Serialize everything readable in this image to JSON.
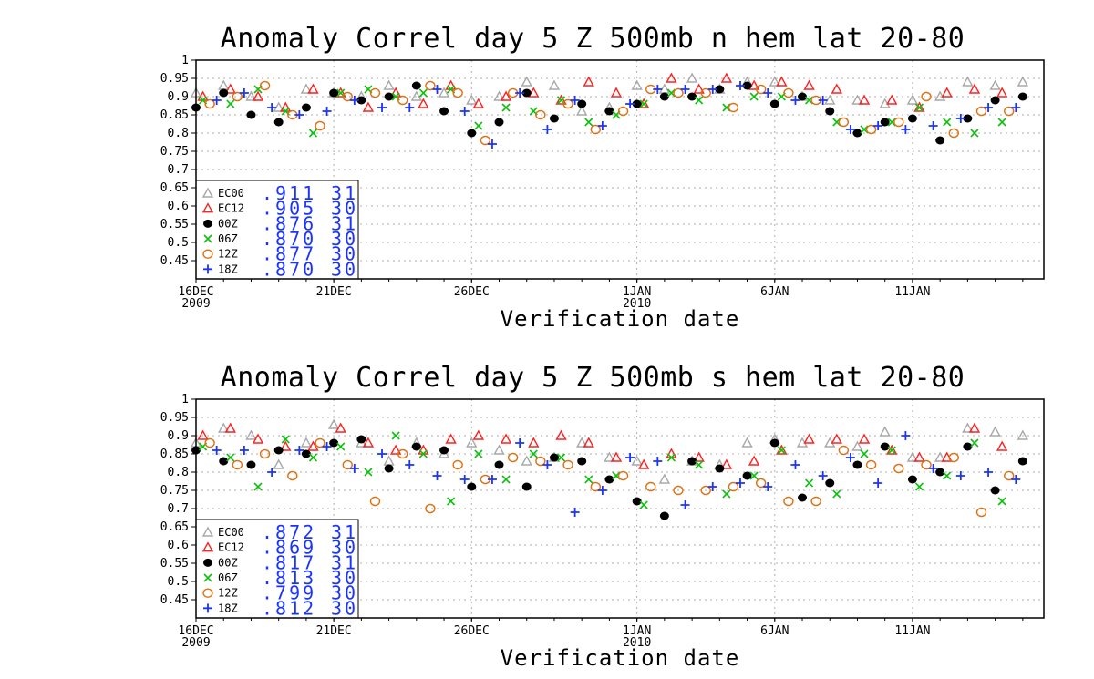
{
  "chart_data": [
    {
      "type": "scatter",
      "title": "Anomaly Correl  day 5  Z 500mb  n hem  lat 20-80",
      "xlabel": "Verification date",
      "ylim": [
        0.4,
        1.0
      ],
      "yticks": [
        "1",
        "0.95",
        "0.9",
        "0.85",
        "0.8",
        "0.75",
        "0.7",
        "0.65",
        "0.6",
        "0.55",
        "0.5",
        "0.45"
      ],
      "xticks": [
        {
          "day": 0,
          "label": "16DEC",
          "label2": "2009"
        },
        {
          "day": 5,
          "label": "21DEC",
          "label2": ""
        },
        {
          "day": 10,
          "label": "26DEC",
          "label2": ""
        },
        {
          "day": 16,
          "label": "1JAN",
          "label2": "2010"
        },
        {
          "day": 21,
          "label": "6JAN",
          "label2": ""
        },
        {
          "day": 26,
          "label": "11JAN",
          "label2": ""
        }
      ],
      "grid": true,
      "legend_position": "bottom-left",
      "series": [
        {
          "name": "EC00",
          "marker": "triangle",
          "color": "#a8a8a8",
          "score": ".911",
          "count": "31",
          "x": [
            0,
            1,
            2,
            3,
            4,
            5,
            6,
            7,
            8,
            9,
            10,
            11,
            12,
            13,
            14,
            15,
            16,
            17,
            18,
            19,
            20,
            21,
            22,
            23,
            24,
            25,
            26,
            27,
            28,
            29,
            30
          ],
          "y": [
            0.91,
            0.93,
            0.9,
            0.87,
            0.92,
            0.91,
            0.9,
            0.93,
            0.9,
            0.91,
            0.89,
            0.9,
            0.94,
            0.93,
            0.86,
            0.87,
            0.93,
            0.92,
            0.95,
            0.92,
            0.94,
            0.94,
            0.9,
            0.89,
            0.89,
            0.88,
            0.89,
            0.9,
            0.94,
            0.93,
            0.94
          ]
        },
        {
          "name": "EC12",
          "marker": "triangle",
          "color": "#ff2020",
          "score": ".905",
          "count": "30",
          "x": [
            0.25,
            1.25,
            2.25,
            3.25,
            4.25,
            5.25,
            6.25,
            7.25,
            8.25,
            9.25,
            10.25,
            11.25,
            12.25,
            13.25,
            14.25,
            15.25,
            16.25,
            17.25,
            18.25,
            19.25,
            20.25,
            21.25,
            22.25,
            23.25,
            24.25,
            25.25,
            26.25,
            27.25,
            28.25,
            29.25
          ],
          "y": [
            0.9,
            0.92,
            0.9,
            0.87,
            0.92,
            0.91,
            0.87,
            0.91,
            0.88,
            0.93,
            0.88,
            0.9,
            0.91,
            0.89,
            0.94,
            0.91,
            0.88,
            0.95,
            0.92,
            0.95,
            0.93,
            0.94,
            0.93,
            0.92,
            0.89,
            0.89,
            0.87,
            0.91,
            0.92,
            0.91
          ]
        },
        {
          "name": "00Z",
          "marker": "dot",
          "color": "#000000",
          "score": ".876",
          "count": "31",
          "x": [
            0,
            1,
            2,
            3,
            4,
            5,
            6,
            7,
            8,
            9,
            10,
            11,
            12,
            13,
            14,
            15,
            16,
            17,
            18,
            19,
            20,
            21,
            22,
            23,
            24,
            25,
            26,
            27,
            28,
            29,
            30
          ],
          "y": [
            0.87,
            0.91,
            0.85,
            0.83,
            0.87,
            0.91,
            0.89,
            0.9,
            0.93,
            0.86,
            0.8,
            0.83,
            0.91,
            0.84,
            0.88,
            0.86,
            0.88,
            0.9,
            0.9,
            0.92,
            0.93,
            0.88,
            0.9,
            0.86,
            0.8,
            0.83,
            0.84,
            0.78,
            0.84,
            0.89,
            0.9
          ]
        },
        {
          "name": "06Z",
          "marker": "x",
          "color": "#10c010",
          "score": ".870",
          "count": "30",
          "x": [
            0.25,
            1.25,
            2.25,
            3.25,
            4.25,
            5.25,
            6.25,
            7.25,
            8.25,
            9.25,
            10.25,
            11.25,
            12.25,
            13.25,
            14.25,
            15.25,
            16.25,
            17.25,
            18.25,
            19.25,
            20.25,
            21.25,
            22.25,
            23.25,
            24.25,
            25.25,
            26.25,
            27.25,
            28.25,
            29.25
          ],
          "y": [
            0.89,
            0.88,
            0.92,
            0.86,
            0.8,
            0.91,
            0.92,
            0.9,
            0.91,
            0.92,
            0.82,
            0.87,
            0.86,
            0.89,
            0.83,
            0.85,
            0.88,
            0.91,
            0.89,
            0.87,
            0.9,
            0.9,
            0.89,
            0.83,
            0.81,
            0.83,
            0.87,
            0.83,
            0.8,
            0.83
          ]
        },
        {
          "name": "12Z",
          "marker": "circle",
          "color": "#e07010",
          "score": ".877",
          "count": "30",
          "x": [
            0.5,
            1.5,
            2.5,
            3.5,
            4.5,
            5.5,
            6.5,
            7.5,
            8.5,
            9.5,
            10.5,
            11.5,
            12.5,
            13.5,
            14.5,
            15.5,
            16.5,
            17.5,
            18.5,
            19.5,
            20.5,
            21.5,
            22.5,
            23.5,
            24.5,
            25.5,
            26.5,
            27.5,
            28.5,
            29.5
          ],
          "y": [
            0.88,
            0.9,
            0.93,
            0.85,
            0.82,
            0.9,
            0.91,
            0.89,
            0.93,
            0.91,
            0.78,
            0.91,
            0.85,
            0.88,
            0.81,
            0.86,
            0.92,
            0.91,
            0.91,
            0.87,
            0.92,
            0.91,
            0.89,
            0.83,
            0.81,
            0.83,
            0.9,
            0.8,
            0.86,
            0.86
          ]
        },
        {
          "name": "18Z",
          "marker": "plus",
          "color": "#1a33ff",
          "score": ".870",
          "count": "30",
          "x": [
            0.75,
            1.75,
            2.75,
            3.75,
            4.75,
            5.75,
            6.75,
            7.75,
            8.75,
            9.75,
            10.75,
            11.75,
            12.75,
            13.75,
            14.75,
            15.75,
            16.75,
            17.75,
            18.75,
            19.75,
            20.75,
            21.75,
            22.75,
            23.75,
            24.75,
            25.75,
            26.75,
            27.75,
            28.75,
            29.75
          ],
          "y": [
            0.89,
            0.91,
            0.87,
            0.85,
            0.86,
            0.89,
            0.87,
            0.87,
            0.92,
            0.86,
            0.77,
            0.91,
            0.81,
            0.89,
            0.82,
            0.88,
            0.92,
            0.92,
            0.92,
            0.93,
            0.91,
            0.89,
            0.89,
            0.81,
            0.82,
            0.81,
            0.82,
            0.84,
            0.87,
            0.87
          ]
        }
      ]
    },
    {
      "type": "scatter",
      "title": "Anomaly Correl  day 5  Z 500mb  s hem  lat 20-80",
      "xlabel": "Verification date",
      "ylim": [
        0.4,
        1.0
      ],
      "yticks": [
        "1",
        "0.95",
        "0.9",
        "0.85",
        "0.8",
        "0.75",
        "0.7",
        "0.65",
        "0.6",
        "0.55",
        "0.5",
        "0.45"
      ],
      "xticks": [
        {
          "day": 0,
          "label": "16DEC",
          "label2": "2009"
        },
        {
          "day": 5,
          "label": "21DEC",
          "label2": ""
        },
        {
          "day": 10,
          "label": "26DEC",
          "label2": ""
        },
        {
          "day": 16,
          "label": "1JAN",
          "label2": "2010"
        },
        {
          "day": 21,
          "label": "6JAN",
          "label2": ""
        },
        {
          "day": 26,
          "label": "11JAN",
          "label2": ""
        }
      ],
      "grid": true,
      "legend_position": "bottom-left",
      "series": [
        {
          "name": "EC00",
          "marker": "triangle",
          "color": "#a8a8a8",
          "score": ".872",
          "count": "31",
          "x": [
            0,
            1,
            2,
            3,
            4,
            5,
            6,
            7,
            8,
            9,
            10,
            11,
            12,
            13,
            14,
            15,
            16,
            17,
            18,
            19,
            20,
            21,
            22,
            23,
            24,
            25,
            26,
            27,
            28,
            29,
            30
          ],
          "y": [
            0.88,
            0.92,
            0.9,
            0.82,
            0.88,
            0.93,
            0.88,
            0.83,
            0.88,
            0.85,
            0.88,
            0.86,
            0.83,
            0.84,
            0.88,
            0.84,
            0.83,
            0.78,
            0.83,
            0.82,
            0.88,
            0.89,
            0.88,
            0.88,
            0.87,
            0.91,
            0.84,
            0.84,
            0.92,
            0.91,
            0.9
          ]
        },
        {
          "name": "EC12",
          "marker": "triangle",
          "color": "#ff2020",
          "score": ".869",
          "count": "30",
          "x": [
            0.25,
            1.25,
            2.25,
            3.25,
            4.25,
            5.25,
            6.25,
            7.25,
            8.25,
            9.25,
            10.25,
            11.25,
            12.25,
            13.25,
            14.25,
            15.25,
            16.25,
            17.25,
            18.25,
            19.25,
            20.25,
            21.25,
            22.25,
            23.25,
            24.25,
            25.25,
            26.25,
            27.25,
            28.25,
            29.25
          ],
          "y": [
            0.9,
            0.92,
            0.89,
            0.87,
            0.87,
            0.92,
            0.88,
            0.86,
            0.86,
            0.89,
            0.9,
            0.89,
            0.88,
            0.9,
            0.88,
            0.84,
            0.82,
            0.85,
            0.84,
            0.82,
            0.83,
            0.86,
            0.89,
            0.89,
            0.89,
            0.86,
            0.84,
            0.84,
            0.92,
            0.87
          ]
        },
        {
          "name": "00Z",
          "marker": "dot",
          "color": "#000000",
          "score": ".817",
          "count": "31",
          "x": [
            0,
            1,
            2,
            3,
            4,
            5,
            6,
            7,
            8,
            9,
            10,
            11,
            12,
            13,
            14,
            15,
            16,
            17,
            18,
            19,
            20,
            21,
            22,
            23,
            24,
            25,
            26,
            27,
            28,
            29,
            30
          ],
          "y": [
            0.86,
            0.83,
            0.82,
            0.86,
            0.85,
            0.88,
            0.89,
            0.81,
            0.87,
            0.86,
            0.76,
            0.82,
            0.76,
            0.84,
            0.83,
            0.78,
            0.72,
            0.68,
            0.83,
            0.81,
            0.79,
            0.88,
            0.73,
            0.77,
            0.82,
            0.87,
            0.78,
            0.8,
            0.87,
            0.75,
            0.83
          ]
        },
        {
          "name": "06Z",
          "marker": "x",
          "color": "#10c010",
          "score": ".813",
          "count": "30",
          "x": [
            0.25,
            1.25,
            2.25,
            3.25,
            4.25,
            5.25,
            6.25,
            7.25,
            8.25,
            9.25,
            10.25,
            11.25,
            12.25,
            13.25,
            14.25,
            15.25,
            16.25,
            17.25,
            18.25,
            19.25,
            20.25,
            21.25,
            22.25,
            23.25,
            24.25,
            25.25,
            26.25,
            27.25,
            28.25,
            29.25
          ],
          "y": [
            0.87,
            0.84,
            0.76,
            0.89,
            0.84,
            0.87,
            0.8,
            0.9,
            0.85,
            0.72,
            0.85,
            0.78,
            0.85,
            0.84,
            0.78,
            0.79,
            0.71,
            0.84,
            0.82,
            0.74,
            0.79,
            0.86,
            0.77,
            0.74,
            0.85,
            0.86,
            0.76,
            0.79,
            0.88,
            0.72
          ]
        },
        {
          "name": "12Z",
          "marker": "circle",
          "color": "#e07010",
          "score": ".799",
          "count": "30",
          "x": [
            0.5,
            1.5,
            2.5,
            3.5,
            4.5,
            5.5,
            6.5,
            7.5,
            8.5,
            9.5,
            10.5,
            11.5,
            12.5,
            13.5,
            14.5,
            15.5,
            16.5,
            17.5,
            18.5,
            19.5,
            20.5,
            21.5,
            22.5,
            23.5,
            24.5,
            25.5,
            26.5,
            27.5,
            28.5,
            29.5
          ],
          "y": [
            0.88,
            0.82,
            0.85,
            0.79,
            0.88,
            0.82,
            0.72,
            0.85,
            0.7,
            0.82,
            0.78,
            0.84,
            0.83,
            0.82,
            0.76,
            0.79,
            0.76,
            0.75,
            0.75,
            0.76,
            0.77,
            0.72,
            0.72,
            0.86,
            0.82,
            0.81,
            0.82,
            0.84,
            0.69,
            0.79
          ]
        },
        {
          "name": "18Z",
          "marker": "plus",
          "color": "#1a33ff",
          "score": ".812",
          "count": "30",
          "x": [
            0.75,
            1.75,
            2.75,
            3.75,
            4.75,
            5.75,
            6.75,
            7.75,
            8.75,
            9.75,
            10.75,
            11.75,
            12.75,
            13.75,
            14.75,
            15.75,
            16.75,
            17.75,
            18.75,
            19.75,
            20.75,
            21.75,
            22.75,
            23.75,
            24.75,
            25.75,
            26.75,
            27.75,
            28.75,
            29.75
          ],
          "y": [
            0.86,
            0.86,
            0.8,
            0.86,
            0.87,
            0.81,
            0.85,
            0.82,
            0.79,
            0.78,
            0.78,
            0.88,
            0.82,
            0.69,
            0.75,
            0.84,
            0.83,
            0.71,
            0.76,
            0.77,
            0.76,
            0.82,
            0.79,
            0.84,
            0.77,
            0.9,
            0.81,
            0.79,
            0.8,
            0.78
          ]
        }
      ]
    }
  ]
}
